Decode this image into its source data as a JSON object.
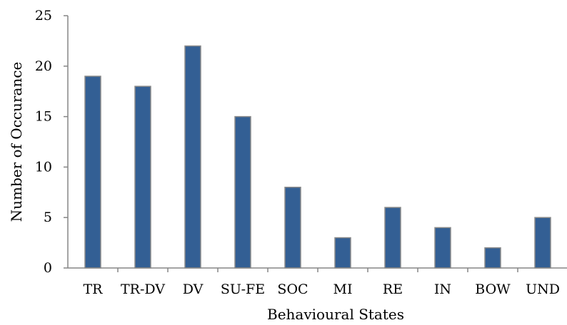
{
  "chart_data": {
    "type": "bar",
    "xlabel": "Behavioural States",
    "ylabel": "Number of Occurance",
    "ylim": [
      0,
      25
    ],
    "yticks": [
      0,
      5,
      10,
      15,
      20,
      25
    ],
    "grid": false,
    "legend": "none",
    "categories": [
      "TR",
      "TR-DV",
      "DV",
      "SU-FE",
      "SOC",
      "MI",
      "RE",
      "IN",
      "BOW",
      "UND"
    ],
    "values": [
      19,
      18,
      22,
      15,
      8,
      3,
      6,
      4,
      2,
      5
    ],
    "bar_color": "#335f94",
    "bar_edge_color": "#8a8a8a",
    "axis_color": "#868686"
  }
}
